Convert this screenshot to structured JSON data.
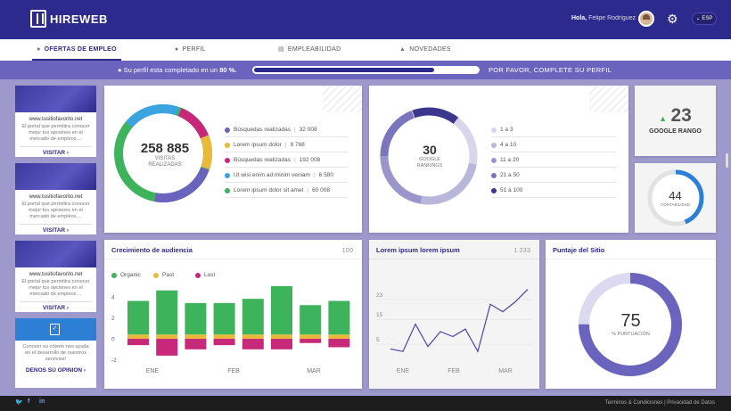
{
  "header": {
    "logo_text": "HIREWEB",
    "greeting": "Hola,",
    "user_name": "Felipe Rodriguez",
    "language": "ESP"
  },
  "tabs": [
    {
      "label": "OFERTAS DE EMPLEO",
      "icon": "user-icon",
      "active": true
    },
    {
      "label": "PERFIL",
      "icon": "user-icon",
      "active": false
    },
    {
      "label": "EMPLEABILIDAD",
      "icon": "chart-icon",
      "active": false
    },
    {
      "label": "NOVEDADES",
      "icon": "bell-icon",
      "active": false
    }
  ],
  "profile_progress": {
    "text_before": "Su perfil esta completado en un",
    "percent_label": "80 %.",
    "percent": 80,
    "cta": "POR FAVOR, COMPLETE SU PERFIL"
  },
  "ads": [
    {
      "url": "www.tusitiofavorito.net",
      "text": "El portal que permitira conocer mejor tus opciones en el mercado de empleos ...",
      "button": "VISITAR"
    },
    {
      "url": "www.tusitiofavorito.net",
      "text": "El portal que permitira conocer mejor tus opciones en el mercado de empleos ...",
      "button": "VISITAR"
    },
    {
      "url": "www.tusitiofavorito.net",
      "text": "El portal que permitira conocer mejor tus opciones en el mercado de empleos ...",
      "button": "VISITAR"
    }
  ],
  "opinion": {
    "text": "Conocer su criterio nos ayuda en el desarrollo de nuestros servicios!",
    "button": "DENOS SU OPINION"
  },
  "visits": {
    "value": "258 885",
    "label_line1": "VISITAS",
    "label_line2": "REALIZADAS",
    "legend": [
      {
        "label": "Búsquedas realizadas",
        "value": "32 008",
        "color": "#6a64be"
      },
      {
        "label": "Lorem ipsum dolor",
        "value": "9 768",
        "color": "#e8b93a"
      },
      {
        "label": "Búsquedas realizadas",
        "value": "192 008",
        "color": "#c8287a"
      },
      {
        "label": "Ut wisi enim ad minim veniam",
        "value": "6 580",
        "color": "#3ba3e0"
      },
      {
        "label": "Lorem ipsum dolor sit amet",
        "value": "60 008",
        "color": "#3db35c"
      }
    ]
  },
  "google_rankings": {
    "value": "30",
    "label_line1": "GOOGLE",
    "label_line2": "RANKINGS",
    "legend": [
      {
        "label": "1 a 3",
        "color": "#d8d6ea"
      },
      {
        "label": "4 a 10",
        "color": "#b9b6dc"
      },
      {
        "label": "11 a 20",
        "color": "#9a96cc"
      },
      {
        "label": "21 a 50",
        "color": "#7a75bd"
      },
      {
        "label": "51 a 100",
        "color": "#3b378f"
      }
    ]
  },
  "google_rank": {
    "value": "23",
    "label": "GOOGLE RANGO"
  },
  "contabilidad": {
    "value": "44",
    "label": "CONTABILIDAD",
    "percent": 44
  },
  "audience": {
    "title": "Crecimiento de audiencia",
    "number": "100",
    "legend": [
      {
        "label": "Organic",
        "color": "#3db35c"
      },
      {
        "label": "Past",
        "color": "#e8b93a"
      },
      {
        "label": "Lost",
        "color": "#c8287a"
      }
    ]
  },
  "lorem_chart": {
    "title": "Lorem ipsum lorem ipsum",
    "number": "1 233"
  },
  "site_score": {
    "title": "Puntaje del Sitio",
    "value": "75",
    "label": "% PUNTUACIÓN",
    "percent": 75
  },
  "footer": {
    "links": "Terminos & Condiciones  |  Privacidad de Datos"
  },
  "chart_data": [
    {
      "type": "bar",
      "title": "Crecimiento de audiencia",
      "ytick_labels": [
        "4",
        "2",
        "0",
        "-2"
      ],
      "xtick_labels": [
        "ENE",
        "FEB",
        "MAR"
      ],
      "series": [
        {
          "name": "Organic",
          "values": [
            3.2,
            4.2,
            3.0,
            3.0,
            3.4,
            4.6,
            2.8,
            3.2
          ]
        },
        {
          "name": "Past",
          "values": [
            0.4,
            0.4,
            0.4,
            0.4,
            0.4,
            0.4,
            0.4,
            0.4
          ]
        },
        {
          "name": "Lost",
          "values": [
            -0.6,
            -1.6,
            -1.0,
            -0.6,
            -1.0,
            -1.0,
            -0.4,
            -0.8
          ]
        }
      ],
      "ylim": [
        -2.2,
        5
      ]
    },
    {
      "type": "line",
      "title": "Lorem ipsum lorem ipsum",
      "ytick_labels": [
        "23",
        "15",
        "5"
      ],
      "xtick_labels": [
        "ENE",
        "FEB",
        "MAR"
      ],
      "x": [
        0,
        1,
        2,
        3,
        4,
        5,
        6,
        7,
        8,
        9,
        10,
        11
      ],
      "values": [
        2,
        1,
        12,
        3,
        9,
        7,
        10,
        1,
        20,
        17,
        21,
        26
      ],
      "ylim": [
        0,
        28
      ]
    }
  ]
}
